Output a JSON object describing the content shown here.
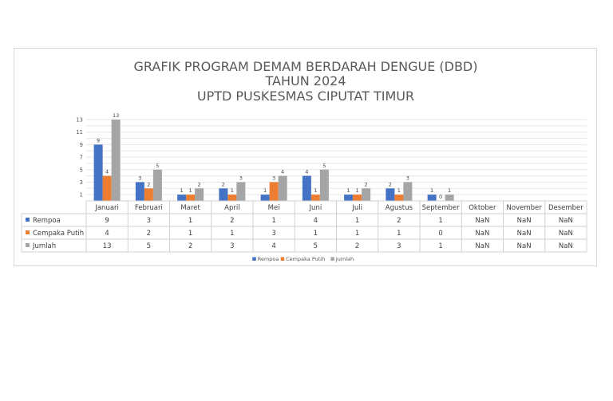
{
  "chart_data": {
    "type": "bar",
    "title": [
      "GRAFIK PROGRAM DEMAM BERDARAH DENGUE (DBD)",
      "TAHUN 2024",
      "UPTD PUSKESMAS CIPUTAT TIMUR"
    ],
    "categories": [
      "Januari",
      "Februari",
      "Maret",
      "April",
      "Mei",
      "Juni",
      "Juli",
      "Agustus",
      "September",
      "Oktober",
      "November",
      "Desember"
    ],
    "series": [
      {
        "name": "Rempoa",
        "color": "#4472c4",
        "values": [
          9,
          3,
          1,
          2,
          1,
          4,
          1,
          2,
          1,
          null,
          null,
          null
        ],
        "table": [
          "9",
          "3",
          "1",
          "2",
          "1",
          "4",
          "1",
          "2",
          "1",
          "NaN",
          "NaN",
          "NaN"
        ]
      },
      {
        "name": "Cempaka Putih",
        "color": "#ed7d31",
        "values": [
          4,
          2,
          1,
          1,
          3,
          1,
          1,
          1,
          0,
          null,
          null,
          null
        ],
        "table": [
          "4",
          "2",
          "1",
          "1",
          "3",
          "1",
          "1",
          "1",
          "0",
          "NaN",
          "NaN",
          "NaN"
        ]
      },
      {
        "name": "Jumlah",
        "color": "#a5a5a5",
        "values": [
          13,
          5,
          2,
          3,
          4,
          5,
          2,
          3,
          1,
          null,
          null,
          null
        ],
        "table": [
          "13",
          "5",
          "2",
          "3",
          "4",
          "5",
          "2",
          "3",
          "1",
          "NaN",
          "NaN",
          "NaN"
        ]
      }
    ],
    "yticks": [
      "1",
      "3",
      "5",
      "7",
      "9",
      "11",
      "13"
    ],
    "ylim": [
      0,
      13
    ],
    "grid": true,
    "legend": "bottom",
    "data_table": true
  }
}
